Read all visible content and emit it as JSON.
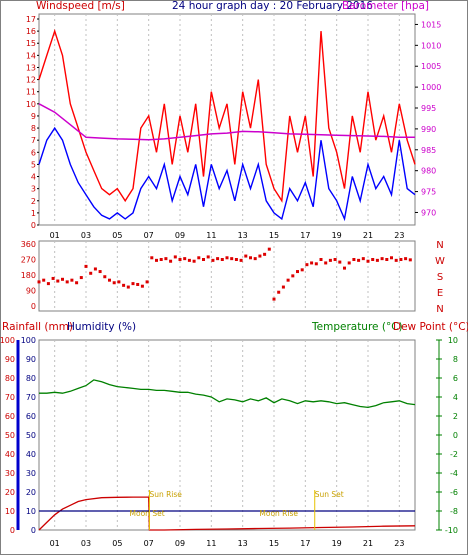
{
  "header": {
    "windspeed_label": "Windspeed [m/s]",
    "title": "24 hour graph day : 20 February 2016",
    "barometer_label": "Barometer [hpa]"
  },
  "bottom_header": {
    "rainfall_label": "Rainfall (mm)",
    "humidity_label": "Humidity (%)",
    "temperature_label": "Temperature (°C)",
    "dewpoint_label": "Dew Point (°C)"
  },
  "colors": {
    "wind_gust": "#ff0000",
    "wind_avg": "#0000ff",
    "barometer": "#cc00cc",
    "direction": "#dd0000",
    "rain": "#cc0000",
    "humidity": "#000080",
    "temperature": "#008000",
    "sun_moon": "#e6c200",
    "axis": "#000000",
    "grid": "#c0c0c0"
  },
  "chart_data": [
    {
      "type": "line",
      "name": "wind-barometer",
      "x_ticks": [
        "01",
        "03",
        "05",
        "07",
        "09",
        "11",
        "13",
        "15",
        "17",
        "19",
        "21",
        "23"
      ],
      "xlim": [
        0,
        24
      ],
      "y_left_ticks": [
        "0",
        "1",
        "2",
        "3",
        "4",
        "5",
        "6",
        "7",
        "8",
        "9",
        "10",
        "11",
        "12",
        "13",
        "14",
        "15",
        "16",
        "17"
      ],
      "ylim_left": [
        0,
        17
      ],
      "y_right_ticks": [
        "970",
        "975",
        "980",
        "985",
        "990",
        "995",
        "1000",
        "1005",
        "1010",
        "1015"
      ],
      "ylim_right": [
        967,
        1017.5
      ],
      "series": [
        {
          "key": "gust",
          "axis": "left",
          "x": [
            0,
            0.5,
            1,
            1.5,
            2,
            2.5,
            3,
            3.5,
            4,
            4.5,
            5,
            5.5,
            6,
            6.5,
            7,
            7.5,
            8,
            8.5,
            9,
            9.5,
            10,
            10.5,
            11,
            11.5,
            12,
            12.5,
            13,
            13.5,
            14,
            14.5,
            15,
            15.5,
            16,
            16.5,
            17,
            17.5,
            18,
            18.5,
            19,
            19.5,
            20,
            20.5,
            21,
            21.5,
            22,
            22.5,
            23,
            23.5,
            24
          ],
          "y": [
            12,
            14,
            16,
            14,
            10,
            8,
            6,
            4.5,
            3,
            2.5,
            3,
            2,
            3,
            8,
            9,
            6,
            10,
            5,
            9,
            6,
            10,
            4,
            11,
            8,
            10,
            5,
            11,
            8,
            12,
            5,
            3,
            2,
            9,
            6,
            9,
            4,
            16,
            8,
            6,
            3,
            9,
            6,
            11,
            7,
            9,
            6,
            10,
            7,
            5
          ]
        },
        {
          "key": "avg",
          "axis": "left",
          "x": [
            0,
            0.5,
            1,
            1.5,
            2,
            2.5,
            3,
            3.5,
            4,
            4.5,
            5,
            5.5,
            6,
            6.5,
            7,
            7.5,
            8,
            8.5,
            9,
            9.5,
            10,
            10.5,
            11,
            11.5,
            12,
            12.5,
            13,
            13.5,
            14,
            14.5,
            15,
            15.5,
            16,
            16.5,
            17,
            17.5,
            18,
            18.5,
            19,
            19.5,
            20,
            20.5,
            21,
            21.5,
            22,
            22.5,
            23,
            23.5,
            24
          ],
          "y": [
            5,
            7,
            8,
            7,
            5,
            3.5,
            2.5,
            1.5,
            0.8,
            0.5,
            1,
            0.5,
            1,
            3,
            4,
            3,
            5,
            2,
            4,
            2.5,
            5,
            1.5,
            5,
            3,
            4.5,
            2,
            5,
            3,
            5,
            2,
            1,
            0.5,
            3,
            2,
            3.5,
            1.5,
            7,
            3,
            2,
            0.5,
            4,
            2,
            5,
            3,
            4,
            2.5,
            7,
            3,
            2.5
          ]
        },
        {
          "key": "barometer",
          "axis": "right",
          "x": [
            0,
            1,
            2,
            3,
            4,
            5,
            6,
            7,
            8,
            9,
            10,
            11,
            12,
            13,
            14,
            15,
            16,
            17,
            18,
            19,
            20,
            21,
            22,
            23,
            24
          ],
          "y": [
            996,
            994,
            991,
            988,
            987.8,
            987.6,
            987.5,
            987.4,
            987.6,
            988,
            988.4,
            988.8,
            989,
            989.4,
            989.3,
            989.1,
            988.8,
            988.7,
            988.6,
            988.5,
            988.4,
            988.3,
            988.2,
            988,
            988
          ]
        }
      ]
    },
    {
      "type": "scatter",
      "name": "wind-direction",
      "xlim": [
        0,
        24
      ],
      "y_ticks": [
        "0",
        "90",
        "180",
        "270",
        "360"
      ],
      "ylim": [
        0,
        360
      ],
      "compass_labels": [
        "N",
        "W",
        "S",
        "E",
        "N"
      ],
      "x": [
        0,
        0.3,
        0.6,
        0.9,
        1.2,
        1.5,
        1.8,
        2.1,
        2.4,
        2.7,
        3,
        3.3,
        3.6,
        3.9,
        4.2,
        4.5,
        4.8,
        5.1,
        5.4,
        5.7,
        6,
        6.3,
        6.6,
        6.9,
        7.2,
        7.5,
        7.8,
        8.1,
        8.4,
        8.7,
        9,
        9.3,
        9.6,
        9.9,
        10.2,
        10.5,
        10.8,
        11.1,
        11.4,
        11.7,
        12,
        12.3,
        12.6,
        12.9,
        13.2,
        13.5,
        13.8,
        14.1,
        14.4,
        14.7,
        15,
        15.3,
        15.6,
        15.9,
        16.2,
        16.5,
        16.8,
        17.1,
        17.4,
        17.7,
        18,
        18.3,
        18.6,
        18.9,
        19.2,
        19.5,
        19.8,
        20.1,
        20.4,
        20.7,
        21,
        21.3,
        21.6,
        21.9,
        22.2,
        22.5,
        22.8,
        23.1,
        23.4,
        23.7
      ],
      "y": [
        140,
        150,
        130,
        160,
        145,
        155,
        140,
        150,
        135,
        165,
        230,
        190,
        215,
        200,
        170,
        150,
        135,
        140,
        120,
        110,
        130,
        125,
        115,
        140,
        280,
        265,
        270,
        275,
        260,
        285,
        270,
        275,
        265,
        260,
        280,
        270,
        285,
        265,
        275,
        270,
        280,
        275,
        270,
        265,
        290,
        280,
        275,
        290,
        300,
        330,
        40,
        80,
        110,
        150,
        175,
        200,
        210,
        240,
        250,
        245,
        270,
        250,
        265,
        270,
        255,
        220,
        250,
        270,
        265,
        275,
        260,
        270,
        265,
        275,
        270,
        280,
        265,
        270,
        275,
        268
      ]
    },
    {
      "type": "line",
      "name": "rain-humidity-temperature",
      "x_ticks": [
        "01",
        "03",
        "05",
        "07",
        "09",
        "11",
        "13",
        "15",
        "17",
        "19",
        "21",
        "23"
      ],
      "xlim": [
        0,
        24
      ],
      "y_left_ticks": [
        "0",
        "10",
        "20",
        "30",
        "40",
        "50",
        "60",
        "70",
        "80",
        "90",
        "100"
      ],
      "ylim_left": [
        0,
        100
      ],
      "y_right_ticks": [
        "-10",
        "-8",
        "-6",
        "-4",
        "-2",
        "0",
        "2",
        "4",
        "6",
        "8",
        "10"
      ],
      "ylim_right": [
        -10,
        10
      ],
      "annotations": [
        "Sun Rise",
        "Moon Set",
        "Sun Set",
        "Moon Rise"
      ],
      "series": [
        {
          "key": "rain",
          "axis": "left",
          "x": [
            0,
            0.5,
            1,
            1.5,
            2,
            2.5,
            3,
            4,
            5,
            6,
            7,
            7.05,
            8,
            10,
            12,
            14,
            16,
            18,
            20,
            22,
            24
          ],
          "y": [
            0,
            4,
            8,
            11,
            13,
            15,
            16,
            17,
            17.2,
            17.3,
            17.3,
            0,
            0,
            0.3,
            0.5,
            0.8,
            1,
            1.3,
            1.6,
            2,
            2.2
          ]
        },
        {
          "key": "humidity",
          "axis": "left",
          "x": [
            0,
            24
          ],
          "y": [
            10,
            10
          ]
        },
        {
          "key": "temperature",
          "axis": "right",
          "x": [
            0,
            0.5,
            1,
            1.5,
            2,
            2.5,
            3,
            3.5,
            4,
            4.5,
            5,
            5.5,
            6,
            6.5,
            7,
            7.5,
            8,
            8.5,
            9,
            9.5,
            10,
            10.5,
            11,
            11.5,
            12,
            12.5,
            13,
            13.5,
            14,
            14.5,
            15,
            15.5,
            16,
            16.5,
            17,
            17.5,
            18,
            18.5,
            19,
            19.5,
            20,
            20.5,
            21,
            21.5,
            22,
            22.5,
            23,
            23.5,
            24
          ],
          "y": [
            4.4,
            4.4,
            4.5,
            4.4,
            4.6,
            4.9,
            5.2,
            5.8,
            5.6,
            5.3,
            5.1,
            5.0,
            4.9,
            4.8,
            4.8,
            4.7,
            4.7,
            4.6,
            4.5,
            4.5,
            4.3,
            4.2,
            4.0,
            3.5,
            3.8,
            3.7,
            3.5,
            3.8,
            3.6,
            3.9,
            3.4,
            3.8,
            3.6,
            3.3,
            3.6,
            3.5,
            3.6,
            3.5,
            3.3,
            3.4,
            3.2,
            3.0,
            2.9,
            3.1,
            3.4,
            3.5,
            3.6,
            3.3,
            3.2
          ]
        }
      ]
    }
  ]
}
